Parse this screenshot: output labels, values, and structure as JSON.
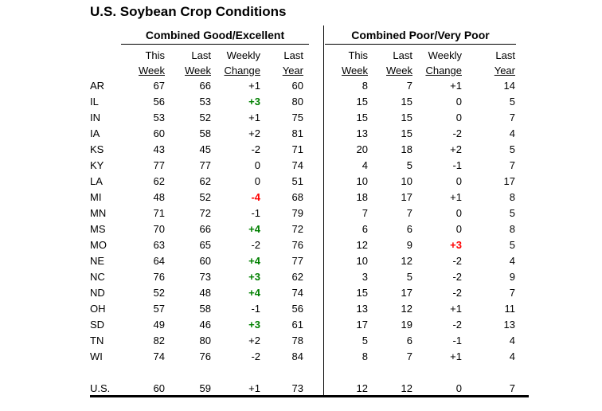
{
  "title": "U.S. Soybean Crop Conditions",
  "sections": {
    "left": "Combined Good/Excellent",
    "right": "Combined Poor/Very Poor"
  },
  "column_headers": {
    "line1": [
      "This",
      "Last",
      "Weekly",
      "Last"
    ],
    "line2": [
      "Week",
      "Week",
      "Change",
      "Year"
    ]
  },
  "colors": {
    "improvement_green": "#008000",
    "decline_red": "#ff0000",
    "text": "#000000",
    "background": "#ffffff"
  },
  "table": {
    "rows": [
      {
        "state": "AR",
        "good_excellent": {
          "this_week": "67",
          "last_week": "66",
          "weekly_change": "+1",
          "change_style": "plain",
          "last_year": "60"
        },
        "poor_very_poor": {
          "this_week": "8",
          "last_week": "7",
          "weekly_change": "+1",
          "change_style": "plain",
          "last_year": "14"
        }
      },
      {
        "state": "IL",
        "good_excellent": {
          "this_week": "56",
          "last_week": "53",
          "weekly_change": "+3",
          "change_style": "green",
          "last_year": "80"
        },
        "poor_very_poor": {
          "this_week": "15",
          "last_week": "15",
          "weekly_change": "0",
          "change_style": "plain",
          "last_year": "5"
        }
      },
      {
        "state": "IN",
        "good_excellent": {
          "this_week": "53",
          "last_week": "52",
          "weekly_change": "+1",
          "change_style": "plain",
          "last_year": "75"
        },
        "poor_very_poor": {
          "this_week": "15",
          "last_week": "15",
          "weekly_change": "0",
          "change_style": "plain",
          "last_year": "7"
        }
      },
      {
        "state": "IA",
        "good_excellent": {
          "this_week": "60",
          "last_week": "58",
          "weekly_change": "+2",
          "change_style": "plain",
          "last_year": "81"
        },
        "poor_very_poor": {
          "this_week": "13",
          "last_week": "15",
          "weekly_change": "-2",
          "change_style": "plain",
          "last_year": "4"
        }
      },
      {
        "state": "KS",
        "good_excellent": {
          "this_week": "43",
          "last_week": "45",
          "weekly_change": "-2",
          "change_style": "plain",
          "last_year": "71"
        },
        "poor_very_poor": {
          "this_week": "20",
          "last_week": "18",
          "weekly_change": "+2",
          "change_style": "plain",
          "last_year": "5"
        }
      },
      {
        "state": "KY",
        "good_excellent": {
          "this_week": "77",
          "last_week": "77",
          "weekly_change": "0",
          "change_style": "plain",
          "last_year": "74"
        },
        "poor_very_poor": {
          "this_week": "4",
          "last_week": "5",
          "weekly_change": "-1",
          "change_style": "plain",
          "last_year": "7"
        }
      },
      {
        "state": "LA",
        "good_excellent": {
          "this_week": "62",
          "last_week": "62",
          "weekly_change": "0",
          "change_style": "plain",
          "last_year": "51"
        },
        "poor_very_poor": {
          "this_week": "10",
          "last_week": "10",
          "weekly_change": "0",
          "change_style": "plain",
          "last_year": "17"
        }
      },
      {
        "state": "MI",
        "good_excellent": {
          "this_week": "48",
          "last_week": "52",
          "weekly_change": "-4",
          "change_style": "red",
          "last_year": "68"
        },
        "poor_very_poor": {
          "this_week": "18",
          "last_week": "17",
          "weekly_change": "+1",
          "change_style": "plain",
          "last_year": "8"
        }
      },
      {
        "state": "MN",
        "good_excellent": {
          "this_week": "71",
          "last_week": "72",
          "weekly_change": "-1",
          "change_style": "plain",
          "last_year": "79"
        },
        "poor_very_poor": {
          "this_week": "7",
          "last_week": "7",
          "weekly_change": "0",
          "change_style": "plain",
          "last_year": "5"
        }
      },
      {
        "state": "MS",
        "good_excellent": {
          "this_week": "70",
          "last_week": "66",
          "weekly_change": "+4",
          "change_style": "green",
          "last_year": "72"
        },
        "poor_very_poor": {
          "this_week": "6",
          "last_week": "6",
          "weekly_change": "0",
          "change_style": "plain",
          "last_year": "8"
        }
      },
      {
        "state": "MO",
        "good_excellent": {
          "this_week": "63",
          "last_week": "65",
          "weekly_change": "-2",
          "change_style": "plain",
          "last_year": "76"
        },
        "poor_very_poor": {
          "this_week": "12",
          "last_week": "9",
          "weekly_change": "+3",
          "change_style": "red",
          "last_year": "5"
        }
      },
      {
        "state": "NE",
        "good_excellent": {
          "this_week": "64",
          "last_week": "60",
          "weekly_change": "+4",
          "change_style": "green",
          "last_year": "77"
        },
        "poor_very_poor": {
          "this_week": "10",
          "last_week": "12",
          "weekly_change": "-2",
          "change_style": "plain",
          "last_year": "4"
        }
      },
      {
        "state": "NC",
        "good_excellent": {
          "this_week": "76",
          "last_week": "73",
          "weekly_change": "+3",
          "change_style": "green",
          "last_year": "62"
        },
        "poor_very_poor": {
          "this_week": "3",
          "last_week": "5",
          "weekly_change": "-2",
          "change_style": "plain",
          "last_year": "9"
        }
      },
      {
        "state": "ND",
        "good_excellent": {
          "this_week": "52",
          "last_week": "48",
          "weekly_change": "+4",
          "change_style": "green",
          "last_year": "74"
        },
        "poor_very_poor": {
          "this_week": "15",
          "last_week": "17",
          "weekly_change": "-2",
          "change_style": "plain",
          "last_year": "7"
        }
      },
      {
        "state": "OH",
        "good_excellent": {
          "this_week": "57",
          "last_week": "58",
          "weekly_change": "-1",
          "change_style": "plain",
          "last_year": "56"
        },
        "poor_very_poor": {
          "this_week": "13",
          "last_week": "12",
          "weekly_change": "+1",
          "change_style": "plain",
          "last_year": "11"
        }
      },
      {
        "state": "SD",
        "good_excellent": {
          "this_week": "49",
          "last_week": "46",
          "weekly_change": "+3",
          "change_style": "green",
          "last_year": "61"
        },
        "poor_very_poor": {
          "this_week": "17",
          "last_week": "19",
          "weekly_change": "-2",
          "change_style": "plain",
          "last_year": "13"
        }
      },
      {
        "state": "TN",
        "good_excellent": {
          "this_week": "82",
          "last_week": "80",
          "weekly_change": "+2",
          "change_style": "plain",
          "last_year": "78"
        },
        "poor_very_poor": {
          "this_week": "5",
          "last_week": "6",
          "weekly_change": "-1",
          "change_style": "plain",
          "last_year": "4"
        }
      },
      {
        "state": "WI",
        "good_excellent": {
          "this_week": "74",
          "last_week": "76",
          "weekly_change": "-2",
          "change_style": "plain",
          "last_year": "84"
        },
        "poor_very_poor": {
          "this_week": "8",
          "last_week": "7",
          "weekly_change": "+1",
          "change_style": "plain",
          "last_year": "4"
        }
      }
    ],
    "us_row": {
      "state": "U.S.",
      "good_excellent": {
        "this_week": "60",
        "last_week": "59",
        "weekly_change": "+1",
        "change_style": "plain",
        "last_year": "73"
      },
      "poor_very_poor": {
        "this_week": "12",
        "last_week": "12",
        "weekly_change": "0",
        "change_style": "plain",
        "last_year": "7"
      }
    }
  }
}
